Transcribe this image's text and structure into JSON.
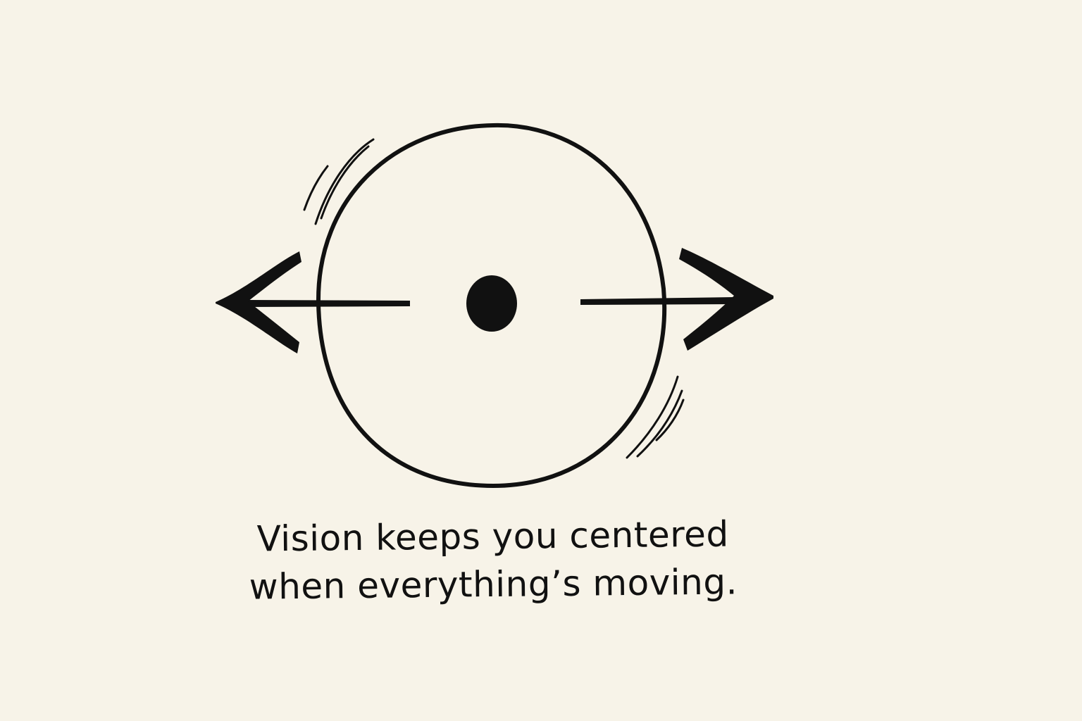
{
  "caption": {
    "line1": "Vision keeps you centered",
    "line2": "when everything’s moving."
  },
  "colors": {
    "background": "#f7f3e8",
    "ink": "#111111"
  }
}
